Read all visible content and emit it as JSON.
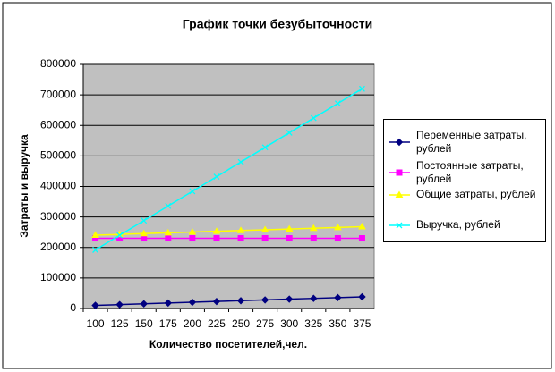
{
  "chart_data": {
    "type": "line",
    "title": "График точки безубыточности",
    "x_label": "Количество посетителей,чел.",
    "y_label": "Затраты и выручка",
    "categories": [
      "100",
      "125",
      "150",
      "175",
      "200",
      "225",
      "250",
      "275",
      "300",
      "325",
      "350",
      "375"
    ],
    "series": [
      {
        "name": "Переменные затраты, рублей",
        "color": "#000080",
        "marker": "diamond",
        "values": [
          10200,
          12750,
          15300,
          17850,
          20400,
          22950,
          25500,
          28050,
          30600,
          33150,
          35700,
          38250
        ]
      },
      {
        "name": "Постоянные затраты, рублей",
        "color": "#ff00ff",
        "marker": "square",
        "values": [
          230000,
          230000,
          230000,
          230000,
          230000,
          230000,
          230000,
          230000,
          230000,
          230000,
          230000,
          230000
        ]
      },
      {
        "name": "Общие затраты, рублей",
        "color": "#ffff00",
        "marker": "triangle",
        "values": [
          240200,
          242750,
          245300,
          247850,
          250400,
          252950,
          255500,
          258050,
          260600,
          263150,
          265700,
          268250
        ]
      },
      {
        "name": "Выручка, рублей",
        "color": "#00ffff",
        "marker": "x",
        "values": [
          192000,
          240000,
          288000,
          336000,
          384000,
          432000,
          480000,
          528000,
          576000,
          624000,
          672000,
          720000
        ]
      }
    ],
    "ylim": [
      0,
      800000
    ],
    "yticks": [
      0,
      100000,
      200000,
      300000,
      400000,
      500000,
      600000,
      700000,
      800000
    ],
    "grid": true,
    "legend": "right"
  }
}
